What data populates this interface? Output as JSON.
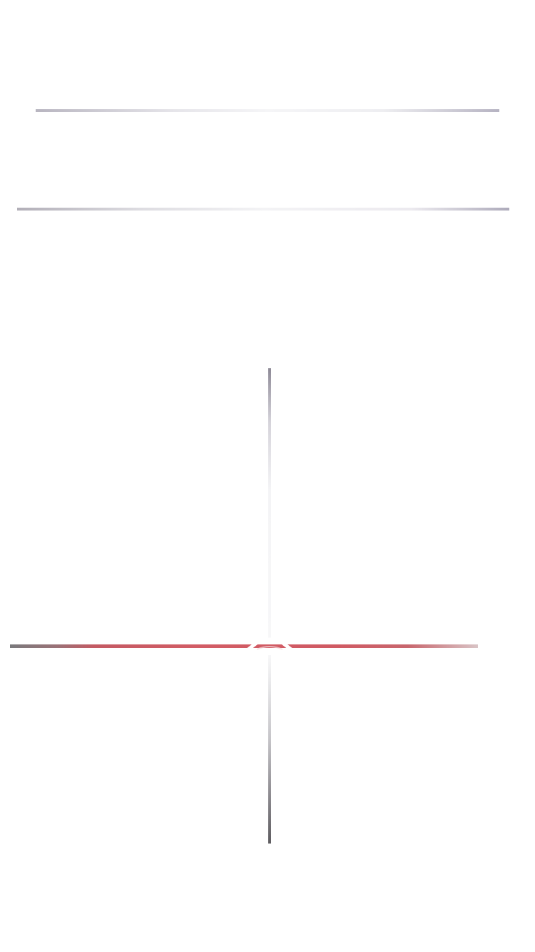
{
  "screen": {
    "background": "#ffffff",
    "accent_red": "#d25c65"
  },
  "decor": {
    "top_divider": "divider-line",
    "middle_divider": "divider-line",
    "vertical_upper": "vertical-line",
    "vertical_lower": "vertical-line",
    "red_line": "red-horizontal-line",
    "center_glyph": "chevron-lens-icon"
  }
}
